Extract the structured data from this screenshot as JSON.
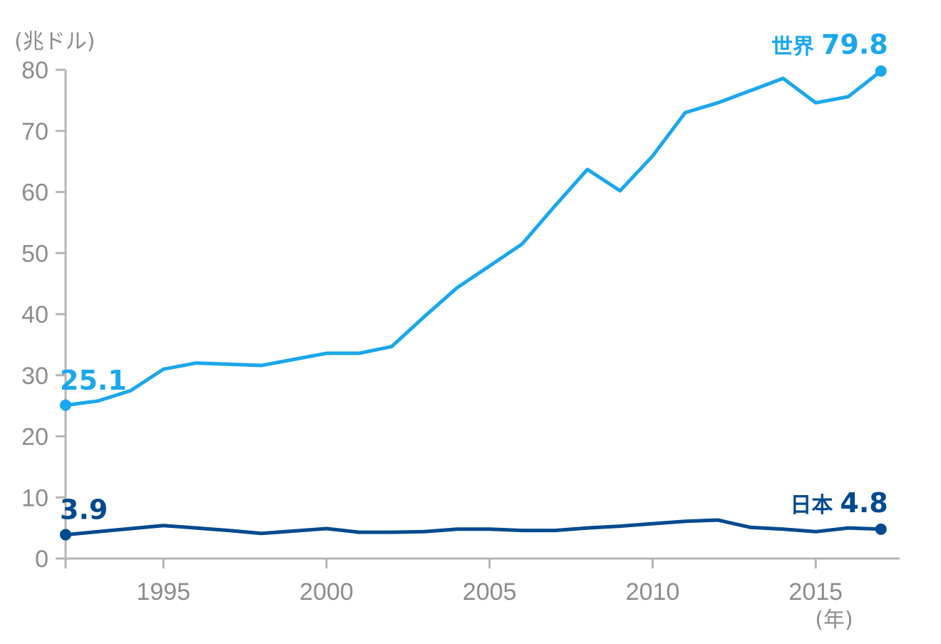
{
  "chart_data": {
    "type": "line",
    "ylabel": "(兆ドル)",
    "xlabel": "(年)",
    "ylim": [
      0,
      80
    ],
    "xlim": [
      1992,
      2017
    ],
    "yticks": [
      "0",
      "10",
      "20",
      "30",
      "40",
      "50",
      "60",
      "70",
      "80"
    ],
    "xticks": [
      "1995",
      "2000",
      "2005",
      "2010",
      "2015"
    ],
    "grid": false,
    "series": [
      {
        "name": "世界",
        "color": "#1aa7ec",
        "x": [
          1992,
          1993,
          1994,
          1995,
          1996,
          1997,
          1998,
          1999,
          2000,
          2001,
          2002,
          2003,
          2004,
          2005,
          2006,
          2007,
          2008,
          2009,
          2010,
          2011,
          2012,
          2013,
          2014,
          2015,
          2016,
          2017
        ],
        "values": [
          25.1,
          25.8,
          27.5,
          31.0,
          32.0,
          31.8,
          31.6,
          32.6,
          33.6,
          33.6,
          34.7,
          39.6,
          44.3,
          47.9,
          51.5,
          57.7,
          63.7,
          60.2,
          65.9,
          73.0,
          74.6,
          76.6,
          78.6,
          74.6,
          75.6,
          79.8
        ],
        "start_label": "25.1",
        "end_label": "79.8"
      },
      {
        "name": "日本",
        "color": "#004a8f",
        "x": [
          1992,
          1993,
          1994,
          1995,
          1996,
          1997,
          1998,
          1999,
          2000,
          2001,
          2002,
          2003,
          2004,
          2005,
          2006,
          2007,
          2008,
          2009,
          2010,
          2011,
          2012,
          2013,
          2014,
          2015,
          2016,
          2017
        ],
        "values": [
          3.9,
          4.4,
          4.9,
          5.4,
          5.0,
          4.6,
          4.1,
          4.5,
          4.9,
          4.3,
          4.3,
          4.4,
          4.8,
          4.8,
          4.6,
          4.6,
          5.0,
          5.3,
          5.7,
          6.1,
          6.3,
          5.1,
          4.8,
          4.4,
          5.0,
          4.8
        ],
        "start_label": "3.9",
        "end_label": "4.8"
      }
    ]
  }
}
